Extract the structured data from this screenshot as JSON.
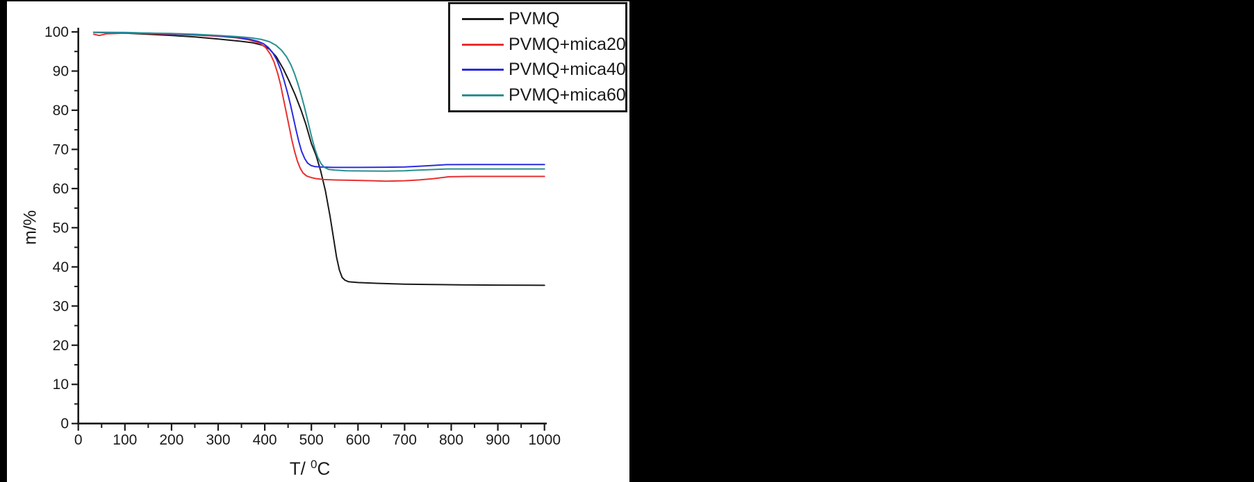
{
  "figure": {
    "background_color": "#000000",
    "panel_color": "#ffffff",
    "axis_color": "#1a1a1a"
  },
  "chart_data": {
    "type": "line",
    "title": "",
    "xlabel": {
      "pre": "T/ ",
      "sup": "0",
      "post": "C"
    },
    "ylabel": "m/%",
    "xlim": [
      0,
      1000
    ],
    "ylim": [
      0,
      100
    ],
    "xticks_major": [
      0,
      100,
      200,
      300,
      400,
      500,
      600,
      700,
      800,
      900,
      1000
    ],
    "xticks_minor": [
      50,
      150,
      250,
      350,
      450,
      550,
      650,
      750,
      850,
      950
    ],
    "yticks_major": [
      0,
      10,
      20,
      30,
      40,
      50,
      60,
      70,
      80,
      90,
      100
    ],
    "yticks_minor": [
      5,
      15,
      25,
      35,
      45,
      55,
      65,
      75,
      85,
      95
    ],
    "grid": false,
    "legend_position": "top-right",
    "series": [
      {
        "name": "PVMQ",
        "color": "#1a1a1a",
        "points": [
          [
            33,
            99.9
          ],
          [
            60,
            99.8
          ],
          [
            100,
            99.7
          ],
          [
            150,
            99.4
          ],
          [
            200,
            99.1
          ],
          [
            250,
            98.7
          ],
          [
            300,
            98.2
          ],
          [
            350,
            97.6
          ],
          [
            375,
            97.2
          ],
          [
            395,
            96.6
          ],
          [
            410,
            95.6
          ],
          [
            425,
            93.6
          ],
          [
            440,
            90.5
          ],
          [
            452,
            87.5
          ],
          [
            465,
            84.0
          ],
          [
            478,
            80.0
          ],
          [
            488,
            76.5
          ],
          [
            500,
            71.5
          ],
          [
            510,
            68.5
          ],
          [
            520,
            64.5
          ],
          [
            530,
            59.5
          ],
          [
            540,
            53.0
          ],
          [
            548,
            47.0
          ],
          [
            554,
            42.5
          ],
          [
            560,
            39.2
          ],
          [
            566,
            37.3
          ],
          [
            572,
            36.6
          ],
          [
            580,
            36.2
          ],
          [
            600,
            36.0
          ],
          [
            640,
            35.8
          ],
          [
            700,
            35.6
          ],
          [
            760,
            35.5
          ],
          [
            820,
            35.4
          ],
          [
            900,
            35.35
          ],
          [
            1000,
            35.3
          ]
        ]
      },
      {
        "name": "PVMQ+mica20",
        "color": "#e83030",
        "points": [
          [
            33,
            99.4
          ],
          [
            45,
            99.1
          ],
          [
            60,
            99.5
          ],
          [
            100,
            99.7
          ],
          [
            150,
            99.6
          ],
          [
            200,
            99.4
          ],
          [
            250,
            99.2
          ],
          [
            300,
            98.9
          ],
          [
            340,
            98.5
          ],
          [
            365,
            98.0
          ],
          [
            382,
            97.4
          ],
          [
            392,
            96.9
          ],
          [
            402,
            96.0
          ],
          [
            412,
            94.3
          ],
          [
            420,
            92.3
          ],
          [
            428,
            89.3
          ],
          [
            434,
            86.5
          ],
          [
            440,
            83.0
          ],
          [
            446,
            79.5
          ],
          [
            452,
            76.0
          ],
          [
            458,
            72.5
          ],
          [
            464,
            69.5
          ],
          [
            470,
            67.0
          ],
          [
            476,
            65.2
          ],
          [
            482,
            64.0
          ],
          [
            490,
            63.2
          ],
          [
            500,
            62.8
          ],
          [
            512,
            62.5
          ],
          [
            527,
            62.3
          ],
          [
            552,
            62.2
          ],
          [
            592,
            62.1
          ],
          [
            630,
            62.0
          ],
          [
            660,
            61.9
          ],
          [
            700,
            62.0
          ],
          [
            730,
            62.2
          ],
          [
            760,
            62.5
          ],
          [
            780,
            62.8
          ],
          [
            795,
            63.0
          ],
          [
            840,
            63.1
          ],
          [
            900,
            63.1
          ],
          [
            1000,
            63.1
          ]
        ]
      },
      {
        "name": "PVMQ+mica40",
        "color": "#2b2be0",
        "points": [
          [
            33,
            99.9
          ],
          [
            100,
            99.8
          ],
          [
            150,
            99.7
          ],
          [
            200,
            99.5
          ],
          [
            250,
            99.3
          ],
          [
            300,
            99.0
          ],
          [
            340,
            98.6
          ],
          [
            368,
            98.1
          ],
          [
            385,
            97.6
          ],
          [
            397,
            97.0
          ],
          [
            407,
            96.1
          ],
          [
            417,
            94.7
          ],
          [
            426,
            92.8
          ],
          [
            434,
            90.4
          ],
          [
            441,
            87.8
          ],
          [
            448,
            84.8
          ],
          [
            455,
            81.5
          ],
          [
            461,
            78.3
          ],
          [
            467,
            75.0
          ],
          [
            473,
            72.0
          ],
          [
            479,
            69.5
          ],
          [
            486,
            67.6
          ],
          [
            492,
            66.5
          ],
          [
            499,
            65.9
          ],
          [
            508,
            65.6
          ],
          [
            520,
            65.5
          ],
          [
            545,
            65.4
          ],
          [
            600,
            65.4
          ],
          [
            660,
            65.45
          ],
          [
            700,
            65.5
          ],
          [
            730,
            65.7
          ],
          [
            760,
            65.9
          ],
          [
            790,
            66.1
          ],
          [
            850,
            66.15
          ],
          [
            900,
            66.15
          ],
          [
            1000,
            66.15
          ]
        ]
      },
      {
        "name": "PVMQ+mica60",
        "color": "#2a8f8f",
        "points": [
          [
            33,
            99.9
          ],
          [
            100,
            99.85
          ],
          [
            150,
            99.7
          ],
          [
            200,
            99.6
          ],
          [
            250,
            99.4
          ],
          [
            300,
            99.1
          ],
          [
            340,
            98.8
          ],
          [
            370,
            98.5
          ],
          [
            392,
            98.1
          ],
          [
            410,
            97.5
          ],
          [
            424,
            96.6
          ],
          [
            436,
            95.3
          ],
          [
            447,
            93.6
          ],
          [
            456,
            91.6
          ],
          [
            464,
            89.3
          ],
          [
            471,
            86.8
          ],
          [
            478,
            84.0
          ],
          [
            484,
            81.3
          ],
          [
            490,
            78.4
          ],
          [
            496,
            75.4
          ],
          [
            502,
            72.5
          ],
          [
            508,
            69.9
          ],
          [
            514,
            67.9
          ],
          [
            521,
            66.3
          ],
          [
            528,
            65.4
          ],
          [
            537,
            64.9
          ],
          [
            550,
            64.7
          ],
          [
            575,
            64.55
          ],
          [
            610,
            64.5
          ],
          [
            660,
            64.45
          ],
          [
            700,
            64.55
          ],
          [
            730,
            64.7
          ],
          [
            760,
            64.85
          ],
          [
            790,
            65.0
          ],
          [
            850,
            65.0
          ],
          [
            900,
            65.0
          ],
          [
            1000,
            65.0
          ]
        ]
      }
    ]
  }
}
